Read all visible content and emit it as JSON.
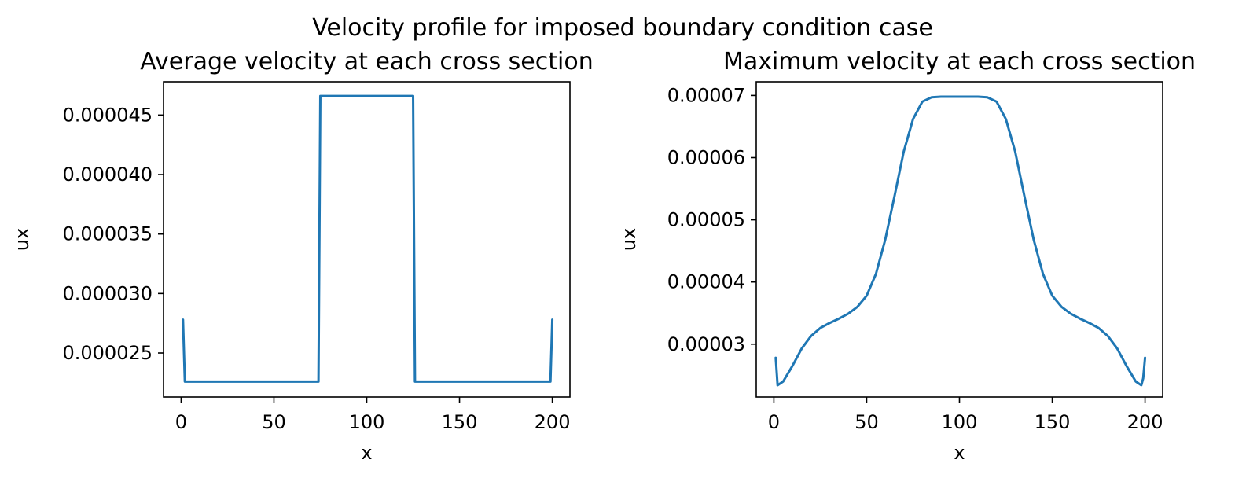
{
  "figure": {
    "suptitle": "Velocity profile for imposed boundary condition case"
  },
  "chart_data": [
    {
      "type": "line",
      "title": "Average velocity at each cross section",
      "xlabel": "x",
      "ylabel": "ux",
      "xlim": [
        -9.5,
        209.5
      ],
      "ylim": [
        2.13e-05,
        4.78e-05
      ],
      "xticks": [
        0,
        50,
        100,
        150,
        200
      ],
      "xtick_labels": [
        "0",
        "50",
        "100",
        "150",
        "200"
      ],
      "yticks": [
        2.5e-05,
        3e-05,
        3.5e-05,
        4e-05,
        4.5e-05
      ],
      "ytick_labels": [
        "0.000025",
        "0.000030",
        "0.000035",
        "0.000040",
        "0.000045"
      ],
      "series": [
        {
          "color": "#1f77b4",
          "x": [
            1,
            2,
            74,
            75,
            125,
            126,
            199,
            200
          ],
          "y": [
            2.78e-05,
            2.26e-05,
            2.26e-05,
            4.66e-05,
            4.66e-05,
            2.26e-05,
            2.26e-05,
            2.78e-05
          ]
        }
      ]
    },
    {
      "type": "line",
      "title": "Maximum velocity at each cross section",
      "xlabel": "x",
      "ylabel": "ux",
      "xlim": [
        -9.5,
        209.5
      ],
      "ylim": [
        2.15e-05,
        7.22e-05
      ],
      "xticks": [
        0,
        50,
        100,
        150,
        200
      ],
      "xtick_labels": [
        "0",
        "50",
        "100",
        "150",
        "200"
      ],
      "yticks": [
        3e-05,
        4e-05,
        5e-05,
        6e-05,
        7e-05
      ],
      "ytick_labels": [
        "0.00003",
        "0.00004",
        "0.00005",
        "0.00006",
        "0.00007"
      ],
      "series": [
        {
          "color": "#1f77b4",
          "x": [
            1,
            2,
            5,
            10,
            15,
            20,
            25,
            30,
            35,
            40,
            45,
            50,
            55,
            60,
            65,
            70,
            75,
            80,
            85,
            90,
            95,
            100,
            105,
            110,
            115,
            120,
            125,
            130,
            135,
            140,
            145,
            150,
            155,
            160,
            165,
            170,
            175,
            180,
            185,
            190,
            195,
            198,
            199,
            200
          ],
          "y": [
            2.78e-05,
            2.34e-05,
            2.4e-05,
            2.65e-05,
            2.93e-05,
            3.13e-05,
            3.26e-05,
            3.34e-05,
            3.41e-05,
            3.49e-05,
            3.6e-05,
            3.78e-05,
            4.13e-05,
            4.68e-05,
            5.38e-05,
            6.1e-05,
            6.62e-05,
            6.9e-05,
            6.97e-05,
            6.98e-05,
            6.98e-05,
            6.98e-05,
            6.98e-05,
            6.98e-05,
            6.97e-05,
            6.9e-05,
            6.62e-05,
            6.1e-05,
            5.38e-05,
            4.68e-05,
            4.13e-05,
            3.78e-05,
            3.6e-05,
            3.49e-05,
            3.41e-05,
            3.34e-05,
            3.26e-05,
            3.13e-05,
            2.93e-05,
            2.65e-05,
            2.4e-05,
            2.34e-05,
            2.45e-05,
            2.78e-05
          ]
        }
      ]
    }
  ]
}
